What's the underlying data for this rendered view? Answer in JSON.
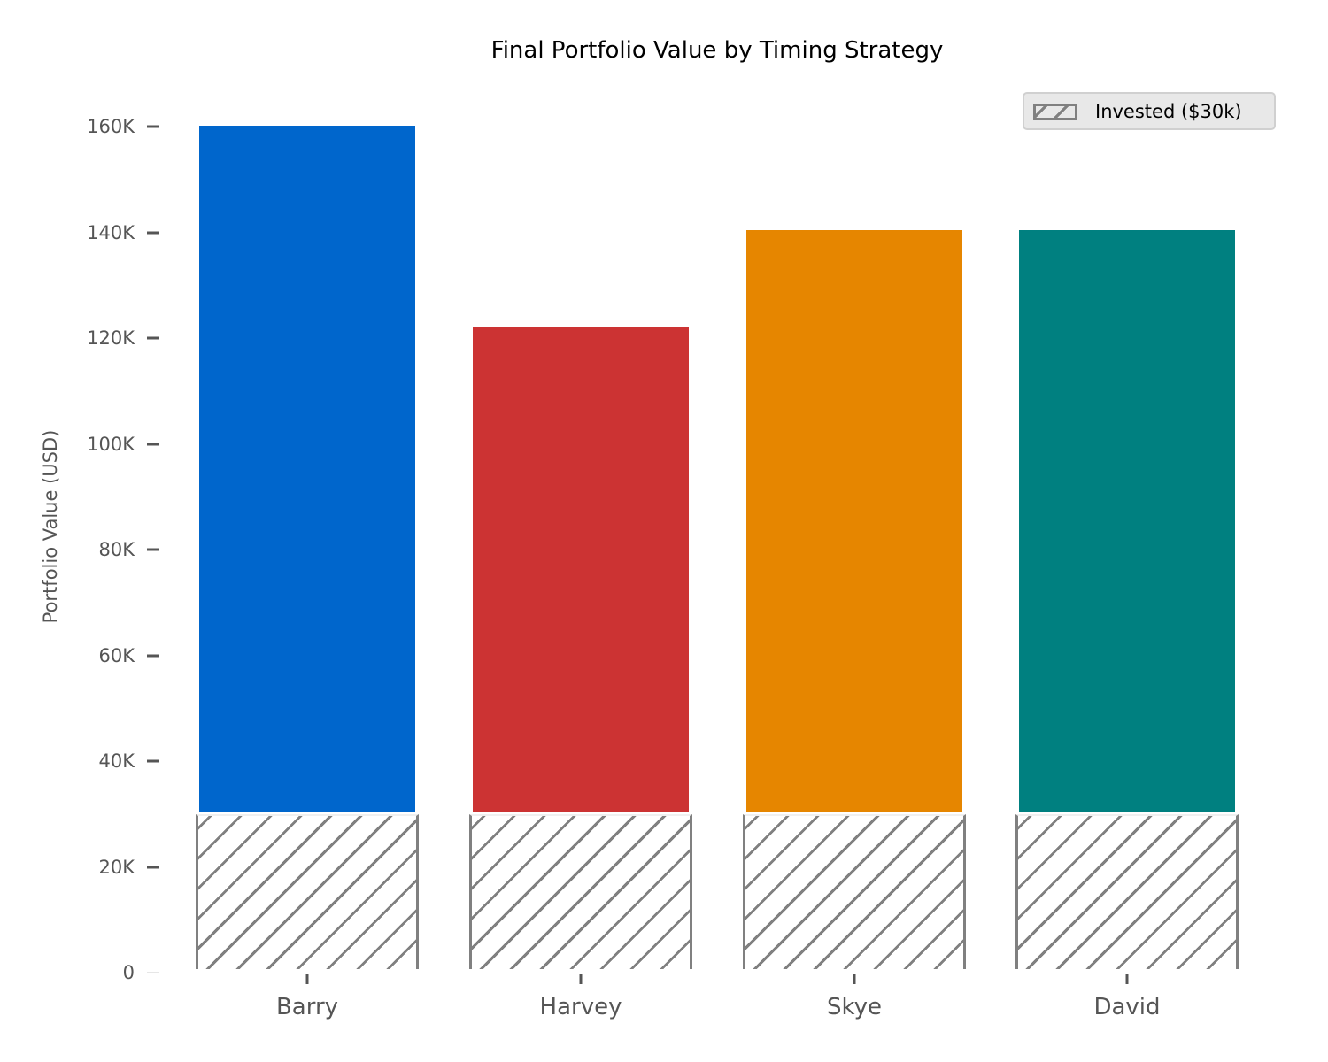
{
  "chart_data": {
    "type": "bar",
    "title": "Final Portfolio Value by Timing Strategy",
    "xlabel": "",
    "ylabel": "Portfolio Value (USD)",
    "categories": [
      "Barry",
      "Harvey",
      "Skye",
      "David"
    ],
    "series": [
      {
        "name": "Final Portfolio Value",
        "values": [
          160200,
          122000,
          140400,
          140400
        ],
        "colors": [
          "#0066cc",
          "#cc3333",
          "#e68600",
          "#008080"
        ]
      },
      {
        "name": "Invested ($30k)",
        "values": [
          30000,
          30000,
          30000,
          30000
        ],
        "pattern": "hatch",
        "color": "#808080"
      }
    ],
    "ylim": [
      0,
      165000
    ],
    "yticks": [
      0,
      20000,
      40000,
      60000,
      80000,
      100000,
      120000,
      140000,
      160000
    ],
    "ytick_labels": [
      "0",
      "20K",
      "40K",
      "60K",
      "80K",
      "100K",
      "120K",
      "140K",
      "160K"
    ],
    "grid": false,
    "legend": {
      "position": "upper right",
      "entries": [
        "Invested ($30k)"
      ]
    }
  },
  "labels": {
    "title": "Final Portfolio Value by Timing Strategy",
    "ylabel": "Portfolio Value (USD)",
    "legend": "Invested ($30k)",
    "yticks": [
      "0",
      "20K",
      "40K",
      "60K",
      "80K",
      "100K",
      "120K",
      "140K",
      "160K"
    ],
    "xticks": [
      "Barry",
      "Harvey",
      "Skye",
      "David"
    ]
  }
}
